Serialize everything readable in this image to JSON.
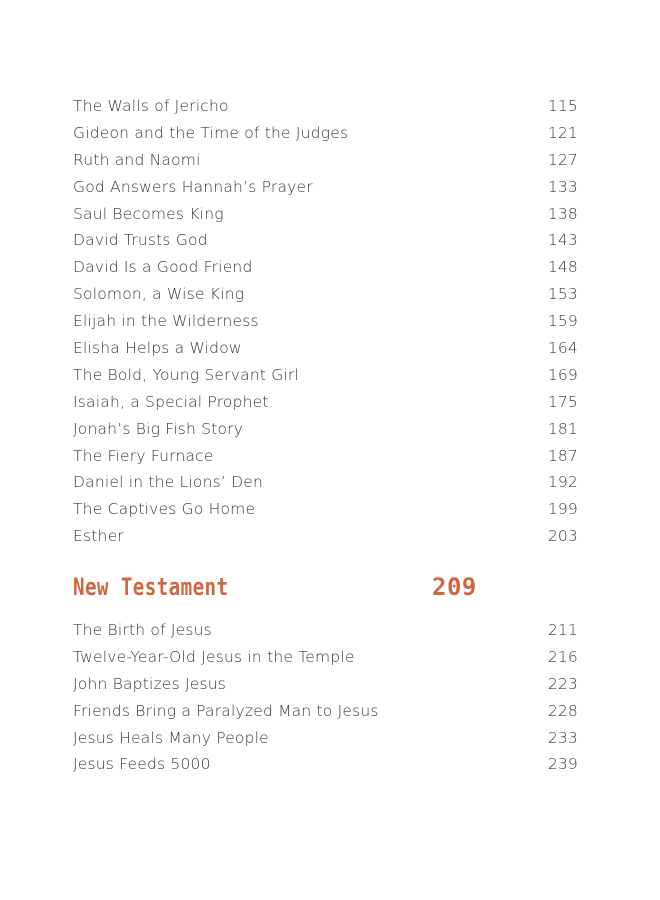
{
  "old_testament_entries": [
    {
      "title": "The Walls of Jericho",
      "page": "115"
    },
    {
      "title": "Gideon and the Time of the Judges",
      "page": "121"
    },
    {
      "title": "Ruth and Naomi",
      "page": "127"
    },
    {
      "title": "God Answers Hannah’s Prayer",
      "page": "133"
    },
    {
      "title": "Saul Becomes King",
      "page": "138"
    },
    {
      "title": "David Trusts God",
      "page": "143"
    },
    {
      "title": "David Is a Good Friend",
      "page": "148"
    },
    {
      "title": "Solomon, a Wise King",
      "page": "153"
    },
    {
      "title": "Elijah in the Wilderness",
      "page": "159"
    },
    {
      "title": "Elisha Helps a Widow",
      "page": "164"
    },
    {
      "title": "The Bold, Young Servant Girl",
      "page": "169"
    },
    {
      "title": "Isaiah, a Special Prophet",
      "page": "175"
    },
    {
      "title": "Jonah’s Big Fish Story",
      "page": "181"
    },
    {
      "title": "The Fiery Furnace",
      "page": "187"
    },
    {
      "title": "Daniel in the Lions’ Den",
      "page": "192"
    },
    {
      "title": "The Captives Go Home",
      "page": "199"
    },
    {
      "title": "Esther",
      "page": "203"
    }
  ],
  "section": {
    "title": "New Testament",
    "page": "209",
    "color": "#d0673f"
  },
  "new_testament_entries": [
    {
      "title": "The Birth of Jesus",
      "page": "211"
    },
    {
      "title": "Twelve-Year-Old Jesus in the Temple",
      "page": "216"
    },
    {
      "title": "John Baptizes Jesus",
      "page": "223"
    },
    {
      "title": "Friends Bring a Paralyzed Man to Jesus",
      "page": "228"
    },
    {
      "title": "Jesus Heals Many People",
      "page": "233"
    },
    {
      "title": "Jesus Feeds 5000",
      "page": "239"
    }
  ]
}
